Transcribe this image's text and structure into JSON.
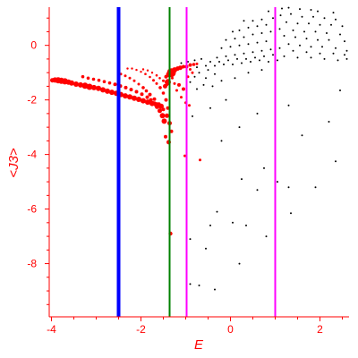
{
  "chart_data": {
    "type": "scatter",
    "title": "",
    "xlabel": "E",
    "ylabel": "<J3>",
    "xlim": [
      -4.05,
      2.65
    ],
    "ylim": [
      -9.95,
      1.4
    ],
    "grid": false,
    "legend": "none",
    "x_ticks": [
      -4,
      -2,
      0,
      2
    ],
    "y_ticks": [
      0,
      -2,
      -4,
      -6,
      -8
    ],
    "axis_color": "#ff0000",
    "vertical_lines": [
      {
        "x": -2.5,
        "color": "#0000ff",
        "width": "thick"
      },
      {
        "x": -1.36,
        "color": "#008000",
        "width": "thin"
      },
      {
        "x": -0.98,
        "color": "#ff00ff",
        "width": "thin"
      },
      {
        "x": 1.0,
        "color": "#ff00ff",
        "width": "thin"
      }
    ],
    "series": [
      {
        "color": "#ff0000",
        "points": [
          [
            -3.98,
            -1.28,
            2.5
          ],
          [
            -3.92,
            -1.27,
            3
          ],
          [
            -3.85,
            -1.28,
            3.5
          ],
          [
            -3.78,
            -1.3,
            3.5
          ],
          [
            -3.7,
            -1.32,
            3.5
          ],
          [
            -3.62,
            -1.35,
            3
          ],
          [
            -3.55,
            -1.38,
            3
          ],
          [
            -3.45,
            -1.42,
            3
          ],
          [
            -3.35,
            -1.45,
            3
          ],
          [
            -3.25,
            -1.48,
            3.5
          ],
          [
            -3.15,
            -1.52,
            3.5
          ],
          [
            -3.05,
            -1.55,
            3
          ],
          [
            -2.95,
            -1.58,
            3
          ],
          [
            -2.85,
            -1.63,
            3
          ],
          [
            -2.75,
            -1.68,
            3
          ],
          [
            -2.65,
            -1.72,
            3
          ],
          [
            -2.55,
            -1.76,
            3
          ],
          [
            -2.45,
            -1.8,
            3
          ],
          [
            -2.35,
            -1.85,
            3
          ],
          [
            -2.25,
            -1.89,
            3
          ],
          [
            -2.15,
            -1.94,
            3
          ],
          [
            -2.05,
            -1.98,
            3
          ],
          [
            -1.95,
            -2.03,
            3
          ],
          [
            -1.85,
            -2.08,
            3
          ],
          [
            -1.75,
            -2.13,
            3
          ],
          [
            -1.65,
            -2.18,
            3
          ],
          [
            -1.55,
            -2.23,
            3
          ],
          [
            -3.3,
            -1.15,
            1.8
          ],
          [
            -3.18,
            -1.2,
            1.8
          ],
          [
            -3.06,
            -1.24,
            1.8
          ],
          [
            -2.94,
            -1.28,
            1.8
          ],
          [
            -2.82,
            -1.33,
            1.8
          ],
          [
            -2.7,
            -1.38,
            1.8
          ],
          [
            -2.58,
            -1.43,
            2
          ],
          [
            -2.46,
            -1.49,
            2
          ],
          [
            -2.34,
            -1.55,
            2
          ],
          [
            -2.22,
            -1.62,
            2
          ],
          [
            -2.1,
            -1.7,
            2
          ],
          [
            -1.98,
            -1.79,
            2
          ],
          [
            -1.86,
            -1.9,
            2
          ],
          [
            -1.78,
            -2.0,
            2
          ],
          [
            -1.7,
            -2.12,
            2
          ],
          [
            -1.64,
            -2.25,
            2.5
          ],
          [
            -1.58,
            -2.4,
            2.5
          ],
          [
            -1.52,
            -2.58,
            3
          ],
          [
            -1.48,
            -2.78,
            3
          ],
          [
            -2.45,
            -1.05,
            1.5
          ],
          [
            -2.35,
            -1.12,
            1.5
          ],
          [
            -2.25,
            -1.2,
            1.5
          ],
          [
            -2.15,
            -1.3,
            1.5
          ],
          [
            -2.05,
            -1.42,
            1.5
          ],
          [
            -1.95,
            -1.55,
            1.8
          ],
          [
            -1.88,
            -1.67,
            1.8
          ],
          [
            -1.8,
            -1.8,
            2
          ],
          [
            -1.7,
            -1.97,
            2
          ],
          [
            -1.6,
            -2.15,
            2
          ],
          [
            -1.5,
            -2.35,
            2
          ],
          [
            -1.42,
            -2.58,
            2.5
          ],
          [
            -1.36,
            -2.85,
            2.5
          ],
          [
            -2.3,
            -0.85,
            1.2
          ],
          [
            -2.2,
            -0.85,
            1.2
          ],
          [
            -2.1,
            -0.9,
            1.2
          ],
          [
            -2.0,
            -0.97,
            1.2
          ],
          [
            -1.9,
            -1.05,
            1.3
          ],
          [
            -1.8,
            -1.16,
            1.3
          ],
          [
            -1.72,
            -1.28,
            1.5
          ],
          [
            -1.65,
            -1.4,
            1.5
          ],
          [
            -1.57,
            -1.55,
            1.8
          ],
          [
            -1.5,
            -1.75,
            1.8
          ],
          [
            -1.44,
            -2.0,
            2
          ],
          [
            -1.4,
            -2.3,
            2
          ],
          [
            -1.95,
            -0.88,
            1.2
          ],
          [
            -1.85,
            -0.92,
            1.2
          ],
          [
            -1.75,
            -1.0,
            1.2
          ],
          [
            -1.65,
            -1.1,
            1.3
          ],
          [
            -1.58,
            -1.2,
            1.3
          ],
          [
            -1.5,
            -1.3,
            1.5
          ],
          [
            -1.42,
            -1.45,
            1.5
          ],
          [
            -1.38,
            -1.07,
            3
          ],
          [
            -1.32,
            -1.0,
            5
          ],
          [
            -1.25,
            -0.9,
            3
          ],
          [
            -1.18,
            -0.85,
            2.5
          ],
          [
            -1.12,
            -0.82,
            2.5
          ],
          [
            -1.05,
            -0.78,
            2
          ],
          [
            -0.98,
            -0.78,
            2
          ],
          [
            -0.9,
            -0.72,
            2
          ],
          [
            -0.82,
            -0.7,
            1.8
          ],
          [
            -0.75,
            -0.68,
            1.5
          ],
          [
            -1.44,
            -1.15,
            2
          ],
          [
            -1.4,
            -1.35,
            3.5
          ],
          [
            -1.46,
            -1.5,
            2.5
          ],
          [
            -1.3,
            -1.2,
            1.5
          ],
          [
            -1.25,
            -1.4,
            1.5
          ],
          [
            -1.2,
            -1.65,
            1.5
          ],
          [
            -1.1,
            -1.9,
            1.5
          ],
          [
            -1.0,
            -2.1,
            1.5
          ],
          [
            -0.92,
            -2.2,
            1.5
          ],
          [
            -1.15,
            -1.45,
            2
          ],
          [
            -1.05,
            -1.6,
            2
          ],
          [
            -1.38,
            -3.55,
            2.5
          ],
          [
            -1.45,
            -3.35,
            2
          ],
          [
            -1.32,
            -3.15,
            2
          ],
          [
            -1.02,
            -4.05,
            1.5
          ],
          [
            -0.68,
            -4.2,
            1.5
          ],
          [
            -1.34,
            -6.9,
            2.2
          ],
          [
            -0.9,
            -0.88,
            1.5
          ],
          [
            -0.85,
            -1.0,
            1.5
          ],
          [
            -0.95,
            -1.15,
            1.5
          ]
        ]
      },
      {
        "color": "#000000",
        "points": [
          [
            1.15,
            1.35
          ],
          [
            1.3,
            1.38
          ],
          [
            1.55,
            1.33
          ],
          [
            1.8,
            1.3
          ],
          [
            1.95,
            1.25
          ],
          [
            2.3,
            1.2
          ],
          [
            1.0,
            1.3
          ],
          [
            0.85,
            1.25
          ],
          [
            1.12,
            1.1
          ],
          [
            1.35,
            1.15
          ],
          [
            1.6,
            1.05
          ],
          [
            1.85,
            1.05
          ],
          [
            2.1,
            1.0
          ],
          [
            2.35,
            0.95
          ],
          [
            0.95,
            1.0
          ],
          [
            0.7,
            0.95
          ],
          [
            0.5,
            0.9
          ],
          [
            0.3,
            0.9
          ],
          [
            1.25,
            0.85
          ],
          [
            1.5,
            0.8
          ],
          [
            1.75,
            0.8
          ],
          [
            2.0,
            0.75
          ],
          [
            2.25,
            0.75
          ],
          [
            2.5,
            0.7
          ],
          [
            0.8,
            0.75
          ],
          [
            0.6,
            0.7
          ],
          [
            0.4,
            0.65
          ],
          [
            0.2,
            0.55
          ],
          [
            0.05,
            0.5
          ],
          [
            1.1,
            0.6
          ],
          [
            1.4,
            0.55
          ],
          [
            1.65,
            0.5
          ],
          [
            1.9,
            0.5
          ],
          [
            2.15,
            0.45
          ],
          [
            2.45,
            0.4
          ],
          [
            0.9,
            0.5
          ],
          [
            0.7,
            0.45
          ],
          [
            0.5,
            0.4
          ],
          [
            0.3,
            0.3
          ],
          [
            0.1,
            0.25
          ],
          [
            -0.1,
            0.2
          ],
          [
            1.2,
            0.35
          ],
          [
            1.45,
            0.3
          ],
          [
            1.7,
            0.25
          ],
          [
            1.95,
            0.2
          ],
          [
            2.2,
            0.2
          ],
          [
            2.55,
            0.15
          ],
          [
            1.0,
            0.2
          ],
          [
            0.8,
            0.15
          ],
          [
            0.6,
            0.1
          ],
          [
            0.4,
            0.05
          ],
          [
            0.2,
            0.0
          ],
          [
            0.0,
            -0.05
          ],
          [
            -0.2,
            -0.1
          ],
          [
            1.3,
            0.05
          ],
          [
            1.55,
            0.0
          ],
          [
            1.8,
            -0.05
          ],
          [
            2.05,
            -0.05
          ],
          [
            2.35,
            -0.1
          ],
          [
            2.6,
            -0.2
          ],
          [
            1.1,
            -0.1
          ],
          [
            0.9,
            -0.15
          ],
          [
            0.7,
            -0.2
          ],
          [
            0.5,
            -0.25
          ],
          [
            0.3,
            -0.3
          ],
          [
            0.1,
            -0.35
          ],
          [
            -0.1,
            -0.4
          ],
          [
            -0.3,
            -0.45
          ],
          [
            1.4,
            -0.2
          ],
          [
            1.7,
            -0.25
          ],
          [
            2.0,
            -0.3
          ],
          [
            2.3,
            -0.3
          ],
          [
            2.55,
            -0.35
          ],
          [
            0.95,
            -0.35
          ],
          [
            0.75,
            -0.4
          ],
          [
            0.55,
            -0.45
          ],
          [
            0.35,
            -0.5
          ],
          [
            0.15,
            -0.5
          ],
          [
            -0.05,
            -0.55
          ],
          [
            -0.25,
            -0.6
          ],
          [
            -0.45,
            -0.6
          ],
          [
            -0.65,
            -0.5
          ],
          [
            -0.8,
            -0.55
          ],
          [
            1.2,
            -0.4
          ],
          [
            1.5,
            -0.45
          ],
          [
            1.8,
            -0.45
          ],
          [
            2.1,
            -0.5
          ],
          [
            2.4,
            -0.55
          ],
          [
            2.6,
            -0.5
          ],
          [
            0.65,
            -0.55
          ],
          [
            0.45,
            -0.6
          ],
          [
            0.25,
            -0.65
          ],
          [
            0.05,
            -0.7
          ],
          [
            -0.15,
            -0.7
          ],
          [
            -0.35,
            -0.75
          ],
          [
            -0.55,
            -0.75
          ],
          [
            -0.75,
            -0.8
          ],
          [
            -0.95,
            -0.6
          ],
          [
            -1.1,
            -0.65
          ],
          [
            0.85,
            -0.6
          ],
          [
            1.05,
            -0.55
          ],
          [
            -0.5,
            -0.9
          ],
          [
            -0.7,
            -1.0
          ],
          [
            -0.35,
            -1.05
          ],
          [
            -0.55,
            -1.2
          ],
          [
            -0.8,
            -1.15
          ],
          [
            -0.9,
            -1.35
          ],
          [
            -0.6,
            -1.45
          ],
          [
            -0.4,
            -1.5
          ],
          [
            -0.75,
            -1.6
          ],
          [
            -0.2,
            -1.3
          ],
          [
            0.1,
            -1.2
          ],
          [
            0.4,
            -1.0
          ],
          [
            0.7,
            -0.9
          ],
          [
            -0.85,
            -2.6
          ],
          [
            -0.45,
            -2.3
          ],
          [
            -0.1,
            -2.0
          ],
          [
            2.45,
            -1.65
          ],
          [
            1.0,
            -1.8
          ],
          [
            1.3,
            -2.2
          ],
          [
            0.6,
            -2.5
          ],
          [
            2.2,
            -2.8
          ],
          [
            0.2,
            -3.0
          ],
          [
            1.6,
            -3.3
          ],
          [
            -0.2,
            -3.5
          ],
          [
            2.35,
            -4.25
          ],
          [
            0.75,
            -4.5
          ],
          [
            0.25,
            -4.9
          ],
          [
            1.05,
            -5.0
          ],
          [
            1.3,
            -5.2
          ],
          [
            1.9,
            -5.2
          ],
          [
            0.6,
            -5.3
          ],
          [
            -0.3,
            -6.1
          ],
          [
            1.35,
            -6.15
          ],
          [
            0.05,
            -6.5
          ],
          [
            -0.45,
            -6.6
          ],
          [
            0.35,
            -6.6
          ],
          [
            0.8,
            -7.0
          ],
          [
            -0.9,
            -7.1
          ],
          [
            -0.55,
            -7.45
          ],
          [
            0.2,
            -8.0
          ],
          [
            -0.9,
            -8.75
          ],
          [
            -0.7,
            -8.8
          ],
          [
            -0.35,
            -8.95
          ]
        ]
      }
    ]
  }
}
